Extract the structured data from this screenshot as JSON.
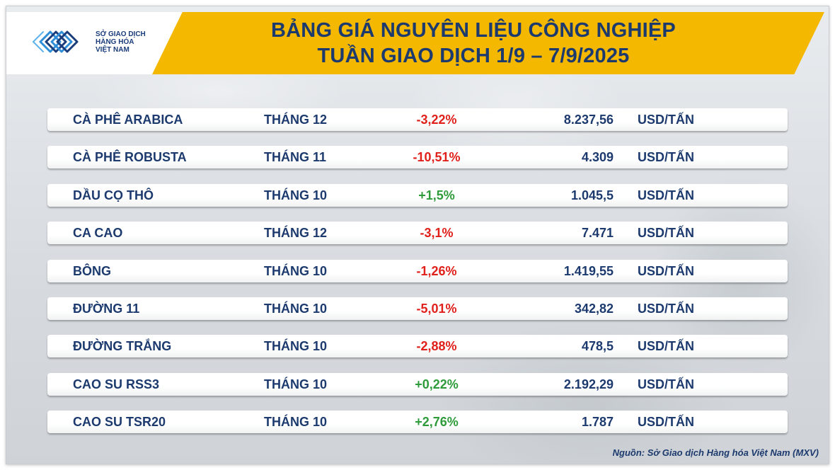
{
  "logo": {
    "line1": "SỞ GIAO DỊCH",
    "line2": "HÀNG HÓA",
    "line3": "VIỆT NAM"
  },
  "title": {
    "line1": "BẢNG GIÁ NGUYÊN LIỆU CÔNG NGHIỆP",
    "line2": "TUẦN GIAO DỊCH 1/9 – 7/9/2025"
  },
  "rows": [
    {
      "name": "CÀ PHÊ ARABICA",
      "month": "THÁNG 12",
      "change": "-3,22%",
      "direction": "down",
      "price": "8.237,56",
      "unit": "USD/TẤN"
    },
    {
      "name": "CÀ PHÊ ROBUSTA",
      "month": "THÁNG 11",
      "change": "-10,51%",
      "direction": "down",
      "price": "4.309",
      "unit": "USD/TẤN"
    },
    {
      "name": "DẦU CỌ THÔ",
      "month": "THÁNG 10",
      "change": "+1,5%",
      "direction": "up",
      "price": "1.045,5",
      "unit": "USD/TẤN"
    },
    {
      "name": "CA CAO",
      "month": "THÁNG 12",
      "change": "-3,1%",
      "direction": "down",
      "price": "7.471",
      "unit": "USD/TẤN"
    },
    {
      "name": "BÔNG",
      "month": "THÁNG 10",
      "change": "-1,26%",
      "direction": "down",
      "price": "1.419,55",
      "unit": "USD/TẤN"
    },
    {
      "name": "ĐƯỜNG 11",
      "month": "THÁNG 10",
      "change": "-5,01%",
      "direction": "down",
      "price": "342,82",
      "unit": "USD/TẤN"
    },
    {
      "name": "ĐƯỜNG TRẮNG",
      "month": "THÁNG 10",
      "change": "-2,88%",
      "direction": "down",
      "price": "478,5",
      "unit": "USD/TẤN"
    },
    {
      "name": "CAO SU RSS3",
      "month": "THÁNG 10",
      "change": "+0,22%",
      "direction": "up",
      "price": "2.192,29",
      "unit": "USD/TẤN"
    },
    {
      "name": "CAO SU TSR20",
      "month": "THÁNG 10",
      "change": "+2,76%",
      "direction": "up",
      "price": "1.787",
      "unit": "USD/TẤN"
    }
  ],
  "source": "Nguồn: Sở Giao dịch Hàng hóa Việt Nam (MXV)",
  "colors": {
    "accent_yellow": "#f5b800",
    "navy": "#1c3a6e",
    "negative": "#e0201b",
    "positive": "#2e9b3a"
  }
}
